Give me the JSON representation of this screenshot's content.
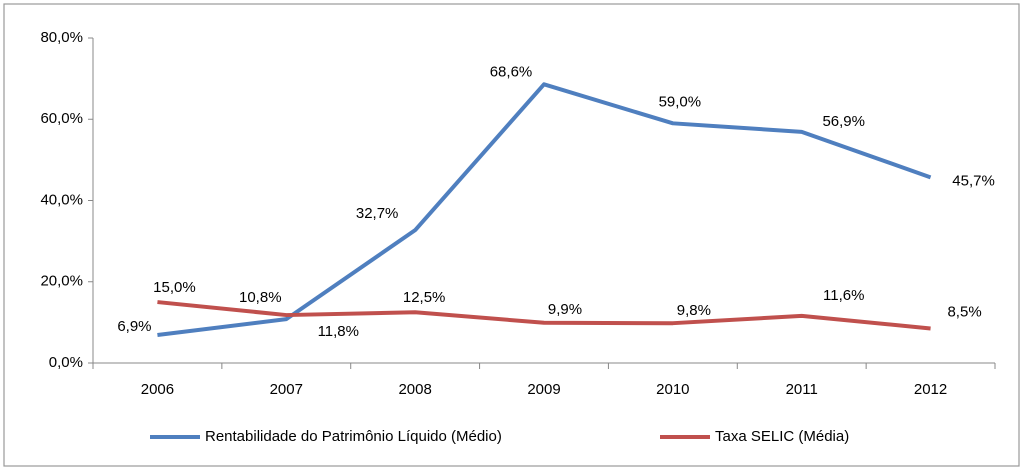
{
  "chart_data": {
    "type": "line",
    "categories": [
      "2006",
      "2007",
      "2008",
      "2009",
      "2010",
      "2011",
      "2012"
    ],
    "series": [
      {
        "name": "Rentabilidade do Patrimônio Líquido (Médio)",
        "color": "#4f7fbf",
        "values": [
          6.9,
          10.8,
          32.7,
          68.6,
          59.0,
          56.9,
          45.7
        ],
        "value_labels": [
          "6,9%",
          "10,8%",
          "32,7%",
          "68,6%",
          "59,0%",
          "56,9%",
          "45,7%"
        ]
      },
      {
        "name": "Taxa SELIC (Média)",
        "color": "#c0504d",
        "values": [
          15.0,
          11.8,
          12.5,
          9.9,
          9.8,
          11.6,
          8.5
        ],
        "value_labels": [
          "15,0%",
          "11,8%",
          "12,5%",
          "9,9%",
          "9,8%",
          "11,6%",
          "8,5%"
        ]
      }
    ],
    "ylim": [
      0,
      80
    ],
    "yticks": [
      {
        "value": 0,
        "label": "0,0%"
      },
      {
        "value": 20,
        "label": "20,0%"
      },
      {
        "value": 40,
        "label": "40,0%"
      },
      {
        "value": 60,
        "label": "60,0%"
      },
      {
        "value": 80,
        "label": "80,0%"
      }
    ],
    "grid": false,
    "legend": "bottom"
  }
}
